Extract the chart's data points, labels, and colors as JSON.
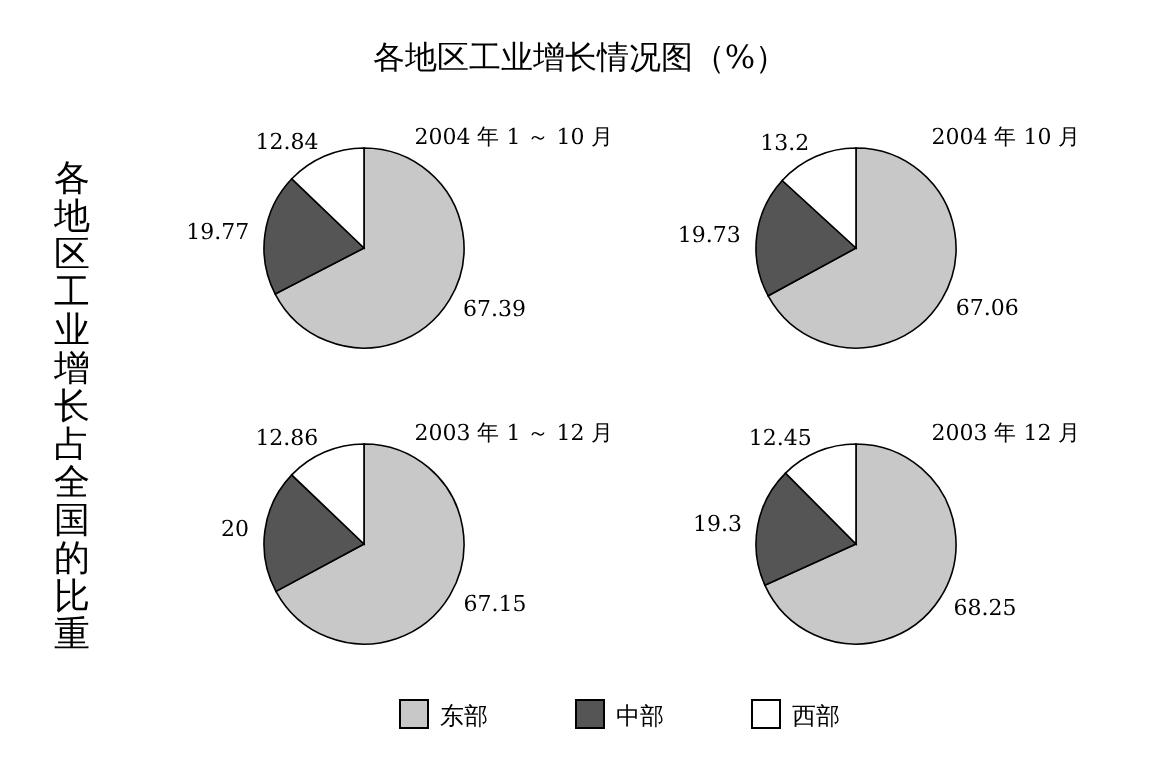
{
  "chart_data": [
    {
      "type": "pie",
      "title": "各地区工业增长情况图（%）",
      "ylabel": "各地区工业增长占全国的比重",
      "subtitle": "2004 年 1 ～ 10 月",
      "categories": [
        "东部",
        "中部",
        "西部"
      ],
      "values": [
        67.39,
        19.77,
        12.84
      ],
      "colors": [
        "#c8c8c8",
        "#555555",
        "#ffffff"
      ],
      "data_labels": true,
      "legend": "bottom"
    },
    {
      "type": "pie",
      "subtitle": "2004 年 10 月",
      "categories": [
        null,
        null,
        null
      ],
      "values": [
        67.06,
        19.73,
        13.2
      ],
      "colors": [
        "#c8c8c8",
        "#555555",
        "#ffffff"
      ],
      "data_labels": true
    },
    {
      "type": "pie",
      "subtitle": "2003 年 1 ～ 12 月",
      "categories": [
        null,
        null,
        null
      ],
      "values": [
        67.15,
        20,
        12.86
      ],
      "colors": [
        "#c8c8c8",
        "#555555",
        "#ffffff"
      ],
      "data_labels": true
    },
    {
      "type": "pie",
      "subtitle": "2003 年 12 月",
      "categories": [
        null,
        null,
        null
      ],
      "values": [
        68.25,
        19.3,
        12.45
      ],
      "colors": [
        "#c8c8c8",
        "#555555",
        "#ffffff"
      ],
      "data_labels": true
    }
  ]
}
